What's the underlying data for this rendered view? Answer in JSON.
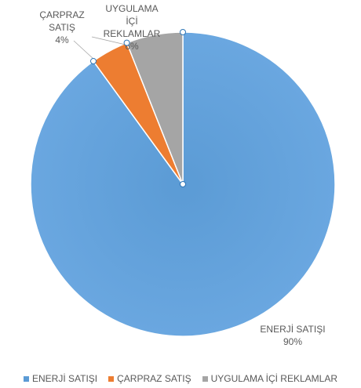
{
  "chart_data": {
    "type": "pie",
    "title": "",
    "slices": [
      {
        "label": "ENERJİ SATIŞI",
        "value": 90,
        "value_label": "90%",
        "color": "#5B9BD5",
        "label_lines": [
          "ENERJİ SATIŞI",
          "90%"
        ]
      },
      {
        "label": "ÇARPRAZ SATIŞ",
        "value": 4,
        "value_label": "4%",
        "color": "#ED7D31",
        "label_lines": [
          "ÇARPRAZ",
          "SATIŞ",
          "4%"
        ]
      },
      {
        "label": "UYGULAMA İÇİ REKLAMLAR",
        "value": 6,
        "value_label": "6%",
        "color": "#A5A5A5",
        "label_lines": [
          "UYGULAMA",
          "İÇİ",
          "REKLAMLAR",
          "6%"
        ]
      }
    ],
    "legend": {
      "position": "bottom",
      "items": [
        "ENERJİ SATIŞI",
        "ÇARPRAZ SATIŞ",
        "UYGULAMA İÇİ REKLAMLAR"
      ]
    }
  }
}
